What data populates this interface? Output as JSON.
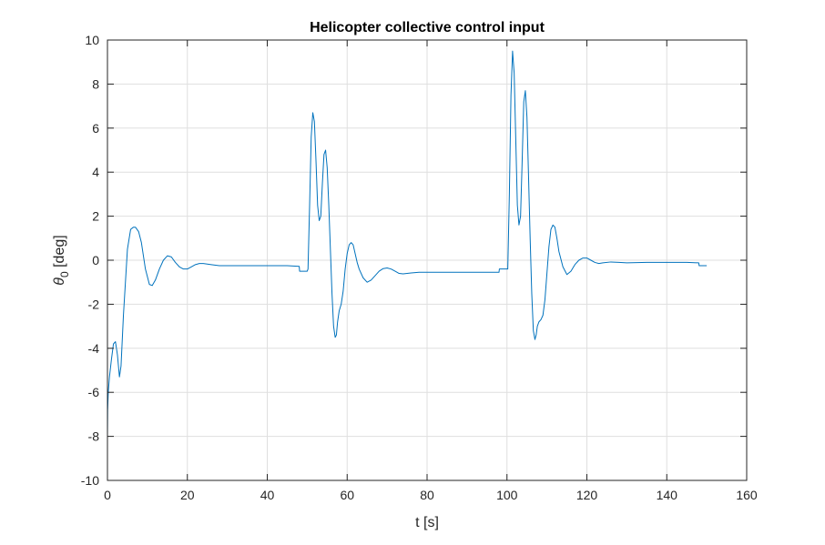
{
  "chart_data": {
    "type": "line",
    "title": "Helicopter collective control input",
    "xlabel": "t [s]",
    "ylabel": {
      "symbol": "θ",
      "subscript": "0",
      "unit": " [deg]"
    },
    "xlim": [
      0,
      160
    ],
    "ylim": [
      -10,
      10
    ],
    "xticks": [
      "0",
      "20",
      "40",
      "60",
      "80",
      "100",
      "120",
      "140",
      "160"
    ],
    "yticks": [
      "-10",
      "-8",
      "-6",
      "-4",
      "-2",
      "0",
      "2",
      "4",
      "6",
      "8",
      "10"
    ],
    "grid": true,
    "box": true,
    "series": [
      {
        "color": "#0072BD",
        "x": [
          0,
          0.05,
          0.2,
          0.5,
          1.0,
          1.5,
          2.0,
          2.5,
          3.0,
          3.4,
          4.0,
          5.0,
          5.8,
          6.5,
          7.0,
          7.8,
          8.5,
          9.5,
          10.5,
          11.2,
          12.0,
          13.0,
          14.0,
          15.0,
          16.0,
          17.0,
          18.0,
          19.0,
          20.0,
          21.0,
          22.0,
          23.0,
          24.0,
          26.0,
          28.0,
          30.0,
          35.0,
          40.0,
          45.0,
          48.0,
          48.1,
          50.0,
          50.2,
          50.6,
          51.0,
          51.4,
          51.8,
          52.2,
          52.6,
          53.0,
          53.4,
          53.8,
          54.2,
          54.6,
          55.0,
          55.4,
          55.8,
          56.2,
          56.6,
          57.0,
          57.3,
          57.6,
          58.0,
          58.5,
          59.0,
          59.5,
          60.0,
          60.5,
          61.0,
          61.5,
          62.0,
          62.5,
          63.0,
          64.0,
          65.0,
          66.0,
          67.0,
          68.0,
          69.0,
          70.0,
          71.0,
          72.0,
          73.0,
          74.0,
          76.0,
          78.0,
          80.0,
          85.0,
          90.0,
          95.0,
          98.0,
          98.1,
          100.0,
          100.2,
          100.6,
          101.0,
          101.4,
          101.8,
          102.2,
          102.6,
          103.0,
          103.4,
          103.8,
          104.2,
          104.6,
          105.0,
          105.4,
          105.8,
          106.2,
          106.6,
          107.0,
          107.3,
          107.6,
          108.0,
          108.5,
          109.0,
          109.5,
          110.0,
          110.5,
          111.0,
          111.5,
          112.0,
          112.5,
          113.0,
          114.0,
          115.0,
          116.0,
          117.0,
          118.0,
          119.0,
          120.0,
          121.0,
          122.0,
          123.0,
          124.0,
          126.0,
          128.0,
          130.0,
          135.0,
          140.0,
          145.0,
          148.0,
          148.1,
          150.0
        ],
        "y": [
          -8.0,
          -6.8,
          -6.0,
          -5.3,
          -4.5,
          -3.8,
          -3.7,
          -4.3,
          -5.3,
          -4.8,
          -2.5,
          0.5,
          1.4,
          1.5,
          1.5,
          1.3,
          0.8,
          -0.4,
          -1.1,
          -1.15,
          -0.9,
          -0.4,
          0.0,
          0.2,
          0.15,
          -0.1,
          -0.3,
          -0.4,
          -0.4,
          -0.3,
          -0.2,
          -0.15,
          -0.15,
          -0.2,
          -0.25,
          -0.25,
          -0.25,
          -0.25,
          -0.25,
          -0.28,
          -0.5,
          -0.5,
          -0.4,
          2.5,
          5.6,
          6.7,
          6.3,
          4.5,
          2.5,
          1.8,
          2.0,
          3.5,
          4.8,
          5.0,
          4.2,
          2.5,
          0.5,
          -1.5,
          -3.0,
          -3.5,
          -3.4,
          -2.8,
          -2.3,
          -2.0,
          -1.4,
          -0.4,
          0.3,
          0.7,
          0.8,
          0.7,
          0.3,
          -0.1,
          -0.4,
          -0.8,
          -1.0,
          -0.9,
          -0.7,
          -0.5,
          -0.38,
          -0.35,
          -0.4,
          -0.5,
          -0.6,
          -0.62,
          -0.58,
          -0.55,
          -0.55,
          -0.55,
          -0.55,
          -0.55,
          -0.55,
          -0.4,
          -0.4,
          -0.4,
          3.0,
          7.5,
          9.5,
          8.5,
          5.5,
          2.5,
          1.6,
          2.0,
          4.5,
          7.2,
          7.7,
          6.5,
          3.8,
          1.0,
          -1.5,
          -3.2,
          -3.6,
          -3.4,
          -3.0,
          -2.8,
          -2.7,
          -2.5,
          -1.8,
          -0.6,
          0.6,
          1.4,
          1.6,
          1.5,
          1.0,
          0.4,
          -0.3,
          -0.65,
          -0.5,
          -0.2,
          0.0,
          0.1,
          0.1,
          0.0,
          -0.1,
          -0.15,
          -0.12,
          -0.08,
          -0.1,
          -0.12,
          -0.1,
          -0.1,
          -0.1,
          -0.12,
          -0.25,
          -0.25
        ]
      }
    ]
  }
}
